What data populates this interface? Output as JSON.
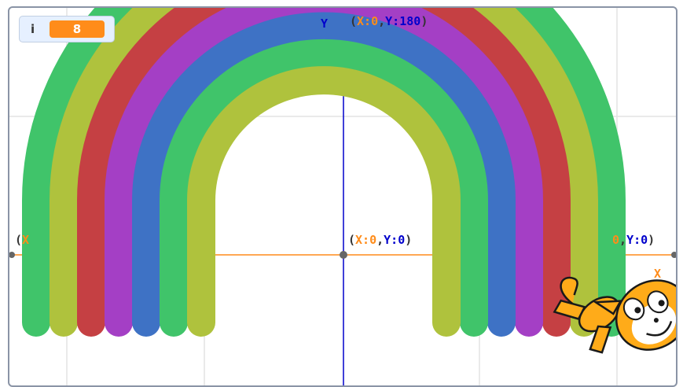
{
  "monitor": {
    "variable_name": "i",
    "value": "8"
  },
  "axes": {
    "y_letter": "Y",
    "x_letter": "X",
    "top_label": {
      "open": "(",
      "x_part": "X:0",
      "comma": ",",
      "y_part": "Y:180",
      "close": ")"
    },
    "origin_label": {
      "open": "(",
      "x_part": "X:0",
      "comma": ",",
      "y_part": "Y:0",
      "close": ")"
    },
    "left_label": {
      "open": "(",
      "x_part": "X"
    },
    "right_label": {
      "x_part": "0",
      "comma": ",",
      "y_part": "Y:0",
      "close": ")"
    }
  },
  "rainbow": {
    "band_colors_outer_to_inner": [
      "#40c46a",
      "#afc23d",
      "#c54043",
      "#a43fc5",
      "#3e72c5",
      "#40c46a",
      "#afc23d"
    ]
  },
  "colors": {
    "axis_orange": "#ff8c1a",
    "axis_blue": "#0000cc",
    "grid": "#e3e3e3",
    "sprite_orange": "#ffab19"
  },
  "sprite": {
    "name": "cat-sprite-icon"
  }
}
